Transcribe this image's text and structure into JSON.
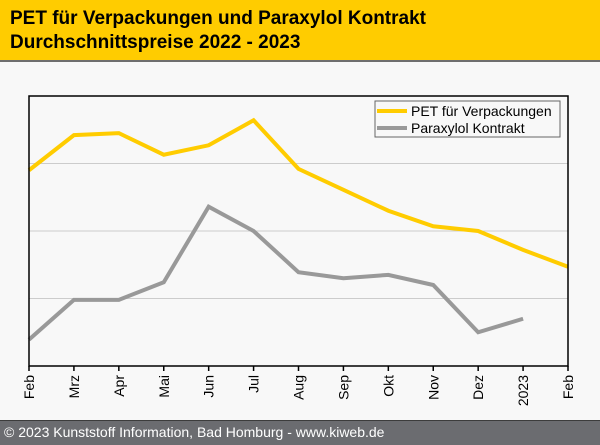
{
  "header": {
    "title_line1": "PET für Verpackungen und Paraxylol Kontrakt",
    "title_line2": "Durchschnittspreise 2022 - 2023"
  },
  "footer": {
    "text": "© 2023 Kunststoff Information, Bad Homburg - www.kiweb.de"
  },
  "colors": {
    "header_bg": "#ffcc00",
    "pet": "#ffcc00",
    "paraxylol": "#999999",
    "grid": "#cccccc",
    "footer_bg": "#6b6c70"
  },
  "chart_data": {
    "type": "line",
    "title": "PET für Verpackungen und Paraxylol Kontrakt Durchschnittspreise 2022 - 2023",
    "xlabel": "",
    "ylabel": "",
    "categories": [
      "Feb",
      "Mrz",
      "Apr",
      "Mai",
      "Jun",
      "Jul",
      "Aug",
      "Sep",
      "Okt",
      "Nov",
      "Dez",
      "2023",
      "Feb"
    ],
    "ylim": [
      0,
      4
    ],
    "y_unit_note": "no y-axis labels shown; values on relative unitless scale (gridline = 1 unit)",
    "grid": true,
    "legend_position": "top-right",
    "series": [
      {
        "name": "PET für Verpackungen",
        "color": "#ffcc00",
        "values": [
          2.9,
          3.42,
          3.45,
          3.13,
          3.27,
          3.64,
          2.92,
          2.61,
          2.3,
          2.07,
          2.0,
          1.72,
          1.47
        ]
      },
      {
        "name": "Paraxylol Kontrakt",
        "color": "#999999",
        "values": [
          0.39,
          0.98,
          0.98,
          1.24,
          2.36,
          2.0,
          1.39,
          1.3,
          1.35,
          1.2,
          0.5,
          0.7,
          null
        ]
      }
    ]
  }
}
